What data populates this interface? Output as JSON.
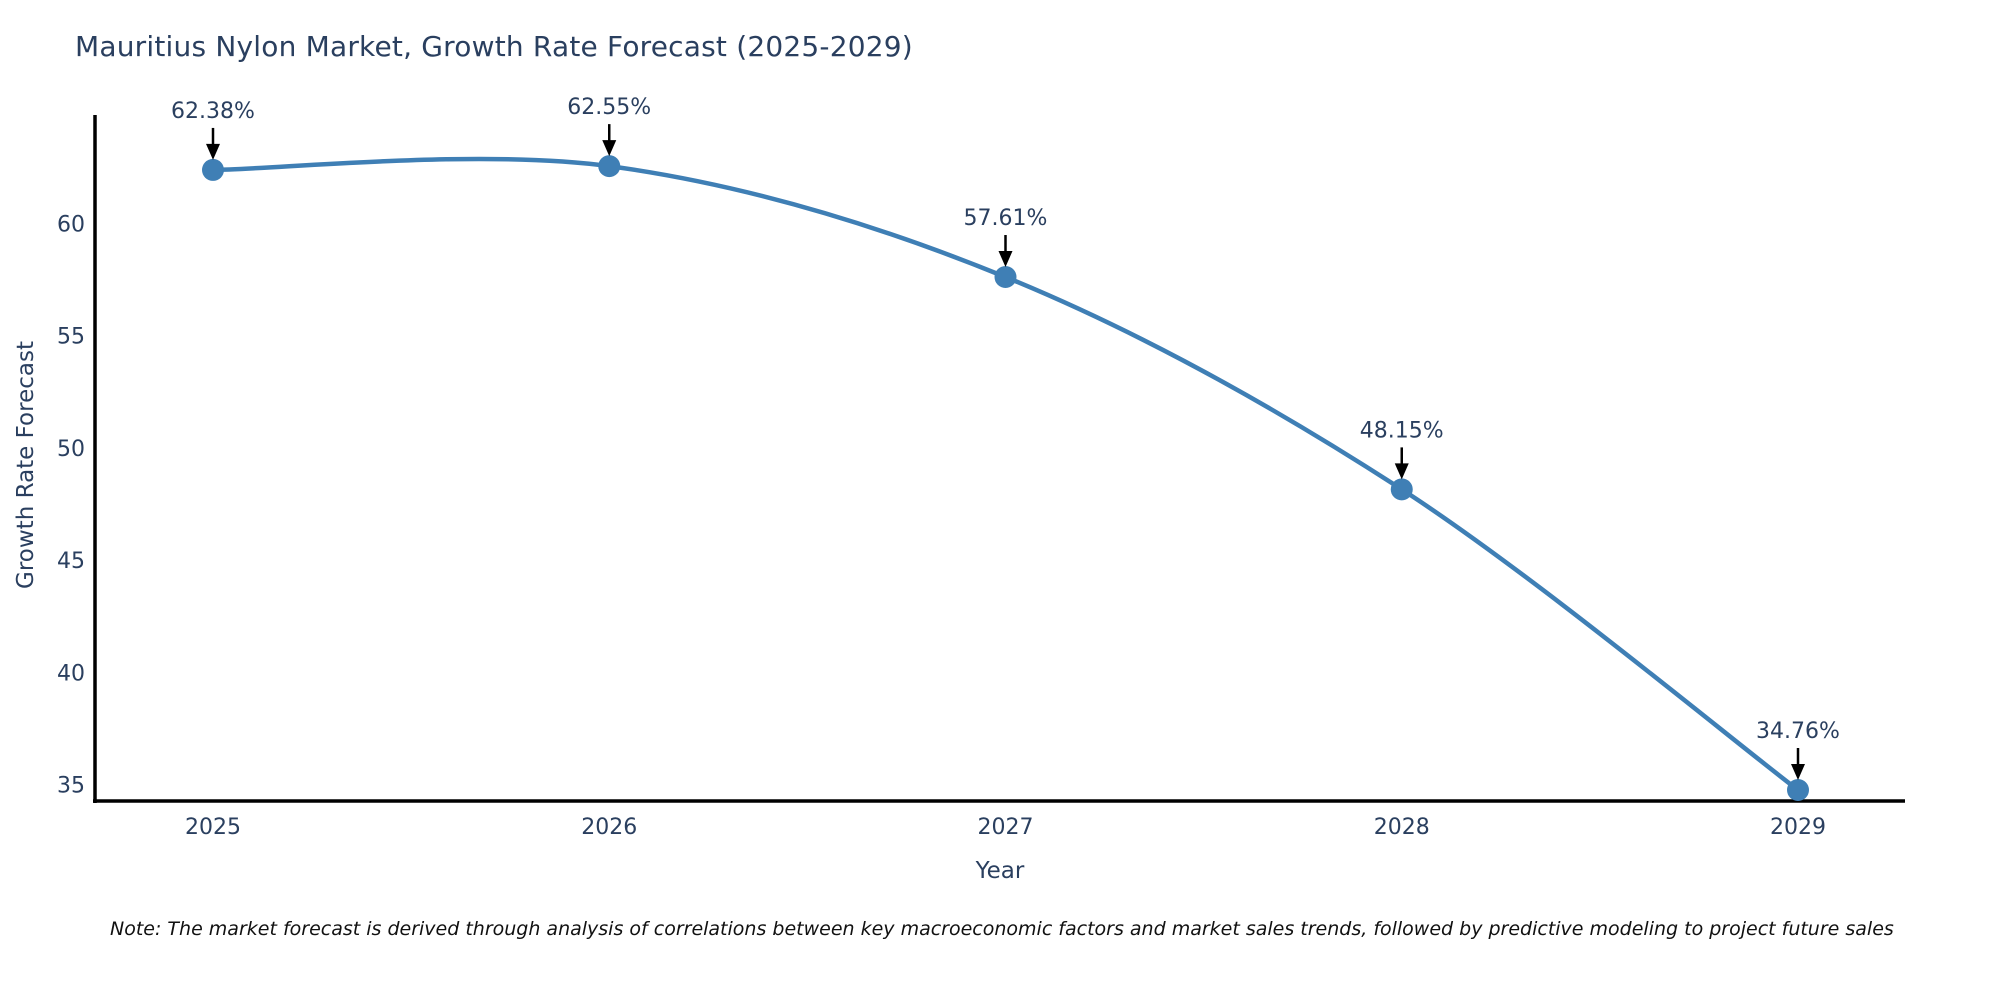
{
  "chart_data": {
    "type": "line",
    "title": "Mauritius Nylon Market, Growth Rate Forecast (2025-2029)",
    "xlabel": "Year",
    "ylabel": "Growth Rate Forecast",
    "x": [
      2025,
      2026,
      2027,
      2028,
      2029
    ],
    "values": [
      62.38,
      62.55,
      57.61,
      48.15,
      34.76
    ],
    "point_labels": [
      "62.38%",
      "62.55%",
      "57.61%",
      "48.15%",
      "34.76%"
    ],
    "xticks": [
      "2025",
      "2026",
      "2027",
      "2028",
      "2029"
    ],
    "yticks": [
      35,
      40,
      45,
      50,
      55,
      60
    ],
    "ylim": [
      34.2,
      64.8
    ],
    "line_shape": "spline",
    "grid": false,
    "legend_position": "none",
    "line_color": "#3f7fb5",
    "marker_color": "#3f7fb5",
    "axis_color": "#000000",
    "arrow_color": "#000000",
    "text_color": "#2a3f5f"
  },
  "note": {
    "text": "Note: The market forecast is derived through analysis of correlations between key macroeconomic factors and market sales trends, followed by predictive modeling to project future sales"
  }
}
